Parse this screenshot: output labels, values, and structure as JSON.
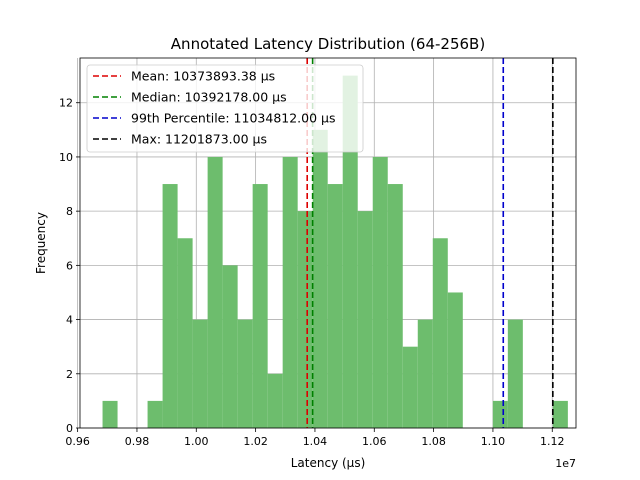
{
  "chart_data": {
    "type": "histogram",
    "title": "Annotated Latency Distribution (64-256B)",
    "xlabel": "Latency (µs)",
    "ylabel": "Frequency",
    "x_offset_label": "1e7",
    "x_scale": 10000000,
    "xlim": [
      9.608,
      11.28
    ],
    "ylim": [
      0,
      13.65
    ],
    "x_ticks": [
      0.96,
      0.98,
      1.0,
      1.02,
      1.04,
      1.06,
      1.08,
      1.1,
      1.12
    ],
    "x_tick_labels": [
      "0.96",
      "0.98",
      "1.00",
      "1.02",
      "1.04",
      "1.06",
      "1.08",
      "1.10",
      "1.12"
    ],
    "y_ticks": [
      0,
      2,
      4,
      6,
      8,
      10,
      12
    ],
    "y_tick_labels": [
      "0",
      "2",
      "4",
      "6",
      "8",
      "10",
      "12"
    ],
    "grid": true,
    "bar_color": "#6dbd6d",
    "bin_start": 9.684,
    "bin_width": 0.0506,
    "counts": [
      1,
      0,
      0,
      1,
      9,
      7,
      4,
      10,
      6,
      4,
      9,
      2,
      10,
      8,
      11,
      9,
      13,
      8,
      10,
      9,
      3,
      4,
      7,
      5,
      0,
      0,
      1,
      4,
      0,
      0,
      1
    ],
    "reference_lines": [
      {
        "name": "Mean",
        "value": 10.37389338,
        "color": "#dd0000",
        "label": "Mean: 10373893.38 µs"
      },
      {
        "name": "Median",
        "value": 10.392178,
        "color": "#008000",
        "label": "Median: 10392178.00 µs"
      },
      {
        "name": "99th Percentile",
        "value": 11.034812,
        "color": "#0000cc",
        "label": "99th Percentile: 11034812.00 µs"
      },
      {
        "name": "Max",
        "value": 11.201873,
        "color": "#000000",
        "label": "Max: 11201873.00 µs"
      }
    ],
    "legend_position": "top-left"
  }
}
